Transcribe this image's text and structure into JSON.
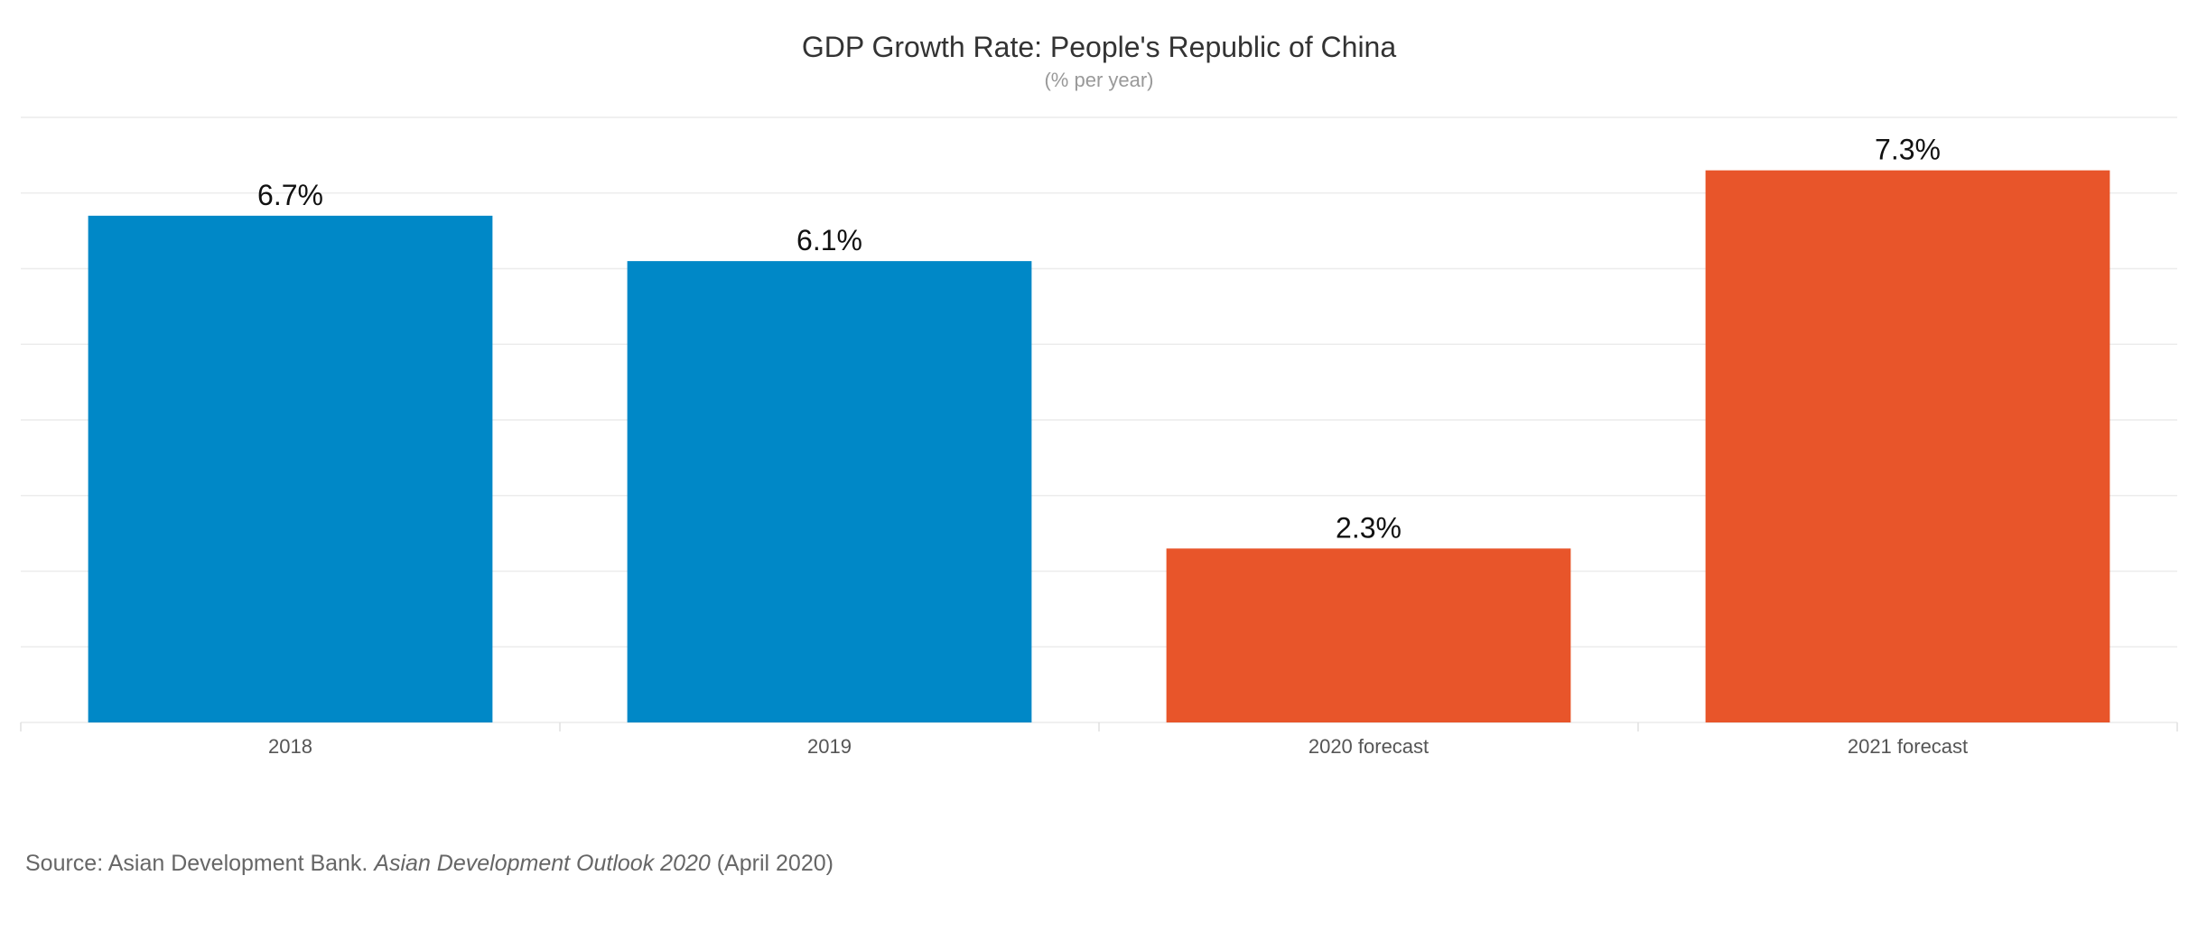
{
  "chart_data": {
    "type": "bar",
    "title": "GDP Growth Rate: People's Republic of China",
    "subtitle": "(% per year)",
    "categories": [
      "2018",
      "2019",
      "2020 forecast",
      "2021 forecast"
    ],
    "values": [
      6.7,
      6.1,
      2.3,
      7.3
    ],
    "value_labels": [
      "6.7%",
      "6.1%",
      "2.3%",
      "7.3%"
    ],
    "bar_colors": [
      "#0088c7",
      "#0088c7",
      "#e8552a",
      "#e8552a"
    ],
    "ylim": [
      0,
      8
    ],
    "grid": true,
    "legend": "none"
  },
  "source": {
    "prefix": "Source: Asian Development Bank. ",
    "publication": "Asian Development Outlook 2020",
    "suffix": " (April 2020)"
  }
}
